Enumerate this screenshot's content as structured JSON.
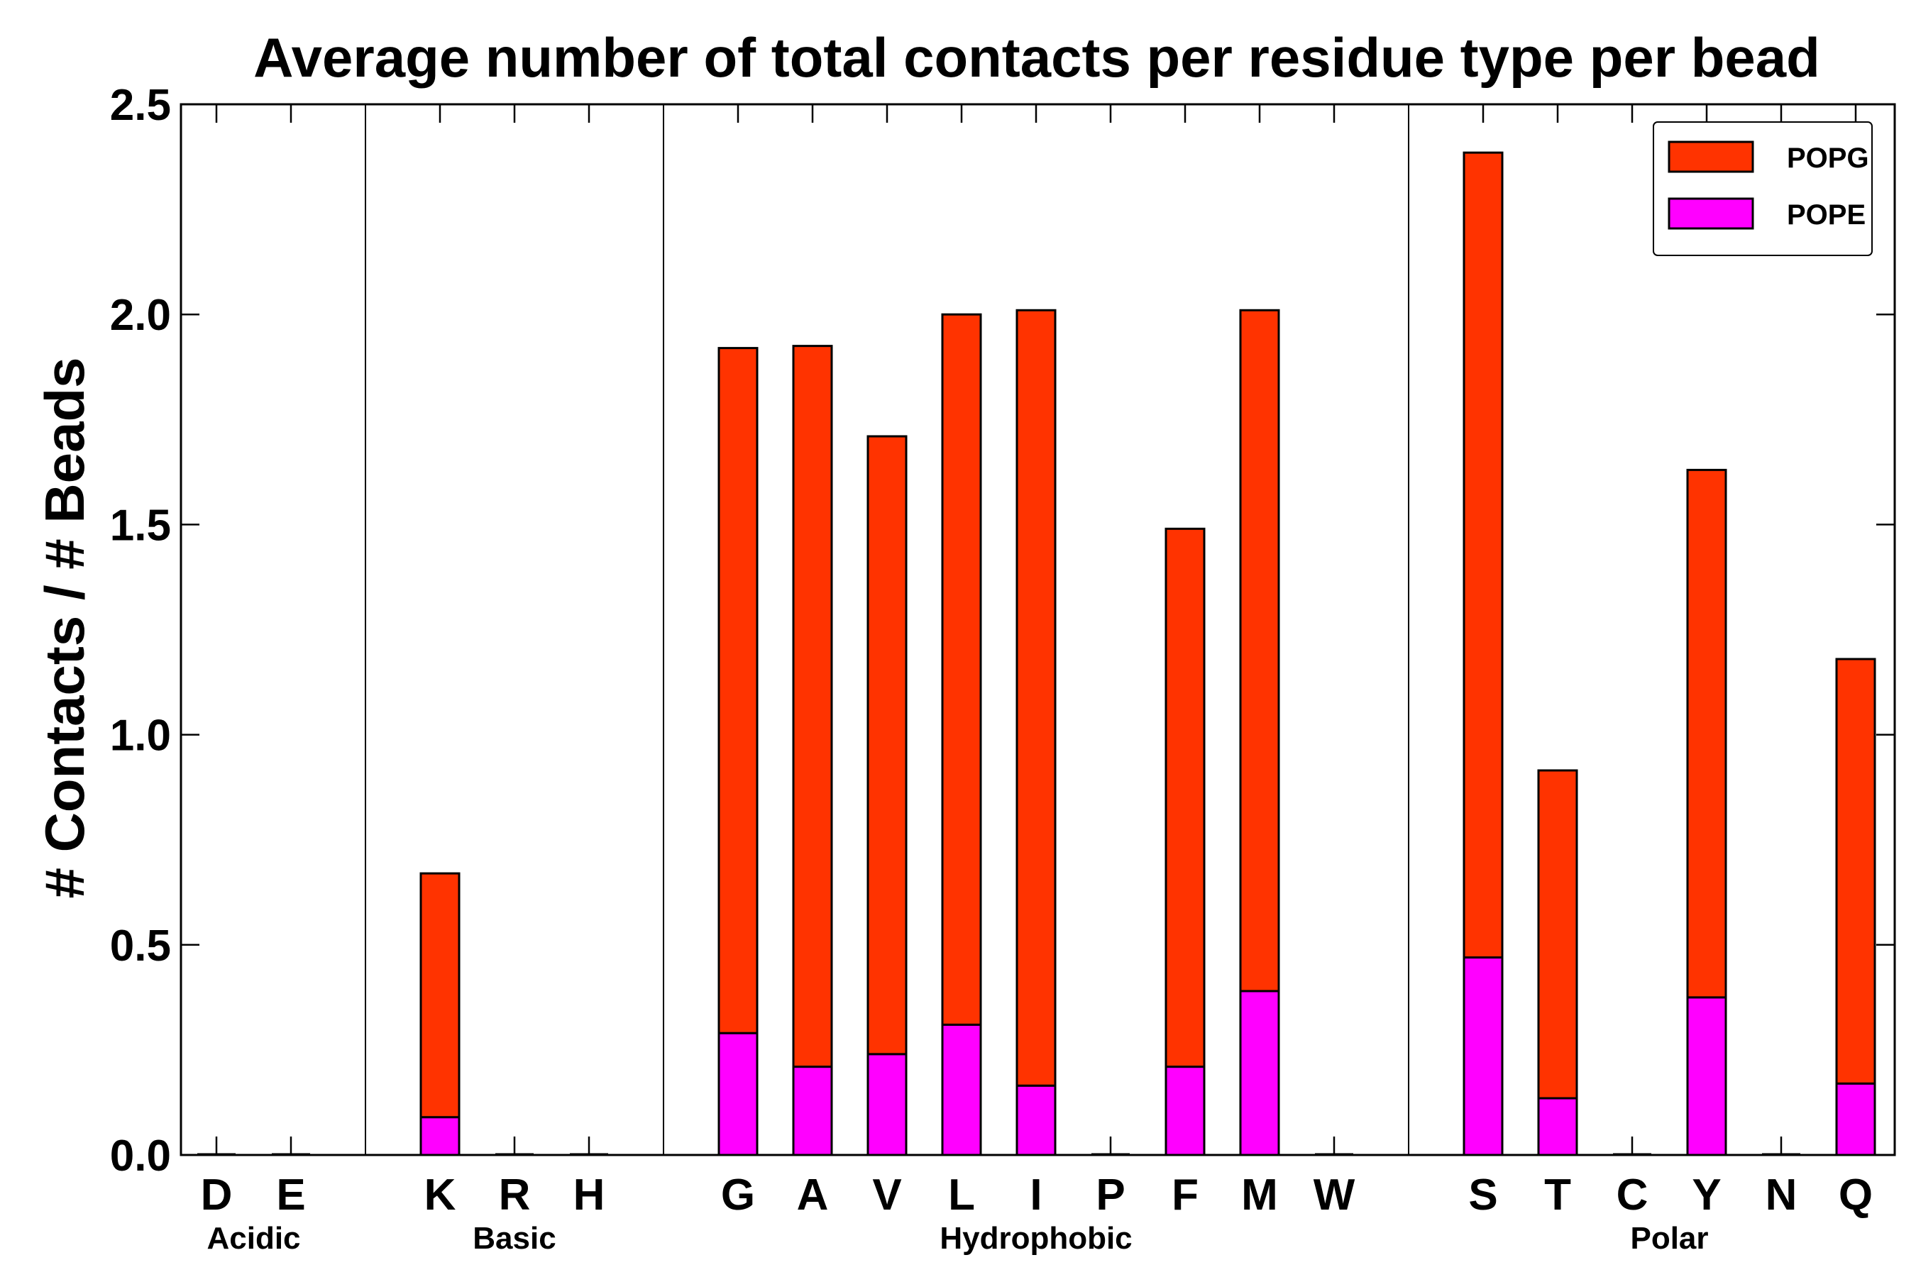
{
  "chart_data": {
    "type": "bar",
    "stacked": true,
    "title": "Average number of total contacts per residue type per bead",
    "xlabel": "",
    "ylabel": "# Contacts / # Beads",
    "ylim": [
      0,
      2.5
    ],
    "yticks": [
      "0.0",
      "0.5",
      "1.0",
      "1.5",
      "2.0",
      "2.5"
    ],
    "legend_position": "top-right",
    "categories": [
      "D",
      "E",
      "K",
      "R",
      "H",
      "G",
      "A",
      "V",
      "L",
      "I",
      "P",
      "F",
      "M",
      "W",
      "S",
      "T",
      "C",
      "Y",
      "N",
      "Q"
    ],
    "groups": [
      {
        "name": "Acidic",
        "categories": [
          "D",
          "E"
        ]
      },
      {
        "name": "Basic",
        "categories": [
          "K",
          "R",
          "H"
        ]
      },
      {
        "name": "Hydrophobic",
        "categories": [
          "G",
          "A",
          "V",
          "L",
          "I",
          "P",
          "F",
          "M",
          "W"
        ]
      },
      {
        "name": "Polar",
        "categories": [
          "S",
          "T",
          "C",
          "Y",
          "N",
          "Q"
        ]
      }
    ],
    "series": [
      {
        "name": "POPE",
        "color": "#ff00ff",
        "values": [
          0,
          0,
          0.09,
          0,
          0,
          0.29,
          0.21,
          0.24,
          0.31,
          0.165,
          0,
          0.21,
          0.39,
          0,
          0.47,
          0.135,
          0,
          0.375,
          0,
          0.17
        ]
      },
      {
        "name": "POPG",
        "color": "#ff3300",
        "values": [
          0,
          0,
          0.58,
          0,
          0,
          1.63,
          1.715,
          1.47,
          1.69,
          1.845,
          0,
          1.28,
          1.62,
          0,
          1.915,
          0.78,
          0,
          1.255,
          0,
          1.01
        ]
      }
    ],
    "legend_order": [
      "POPG",
      "POPE"
    ]
  }
}
